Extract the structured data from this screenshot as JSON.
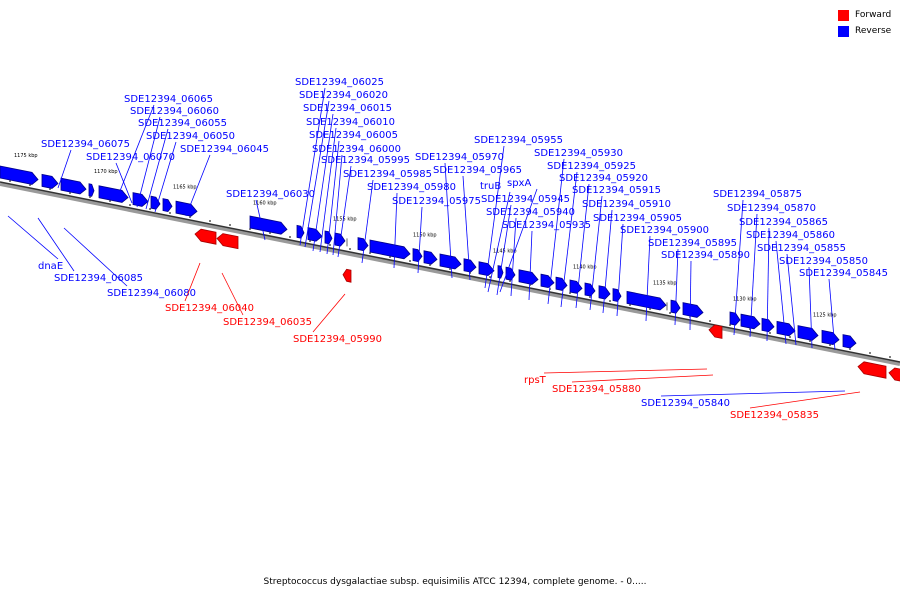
{
  "legend": {
    "forward_label": "Forward",
    "reverse_label": "Reverse",
    "forward_color": "#ff0000",
    "reverse_color": "#0000ff"
  },
  "caption": "Streptococcus dysgalactiae subsp. equisimilis ATCC 12394, complete genome. - 0.....",
  "scale_labels": [
    "1175 kbp",
    "1170 kbp",
    "1165 kbp",
    "1160 kbp",
    "1155 kbp",
    "1150 kbp",
    "1145 kbp",
    "1140 kbp",
    "1135 kbp",
    "1130 kbp",
    "1125 kbp"
  ],
  "labels_above": [
    "SDE12394_06075",
    "SDE12394_06065",
    "SDE12394_06060",
    "SDE12394_06055",
    "SDE12394_06050",
    "SDE12394_06070",
    "SDE12394_06045",
    "SDE12394_06030",
    "SDE12394_06025",
    "SDE12394_06020",
    "SDE12394_06015",
    "SDE12394_06010",
    "SDE12394_06005",
    "SDE12394_06000",
    "SDE12394_05995",
    "SDE12394_05985",
    "SDE12394_05980",
    "SDE12394_05975",
    "SDE12394_05970",
    "SDE12394_05965",
    "SDE12394_05955",
    "truB",
    "spxA",
    "SDE12394_05945",
    "SDE12394_05940",
    "SDE12394_05935",
    "SDE12394_05930",
    "SDE12394_05925",
    "SDE12394_05920",
    "SDE12394_05915",
    "SDE12394_05910",
    "SDE12394_05905",
    "SDE12394_05900",
    "SDE12394_05895",
    "SDE12394_05890",
    "SDE12394_05875",
    "SDE12394_05870",
    "SDE12394_05865",
    "SDE12394_05860",
    "SDE12394_05855",
    "SDE12394_05850",
    "SDE12394_05845"
  ],
  "labels_below": [
    "dnaE",
    "SDE12394_06085",
    "SDE12394_06080",
    "SDE12394_06040",
    "SDE12394_06035",
    "SDE12394_05990",
    "rpsT",
    "SDE12394_05880",
    "SDE12394_05840",
    "SDE12394_05835"
  ]
}
